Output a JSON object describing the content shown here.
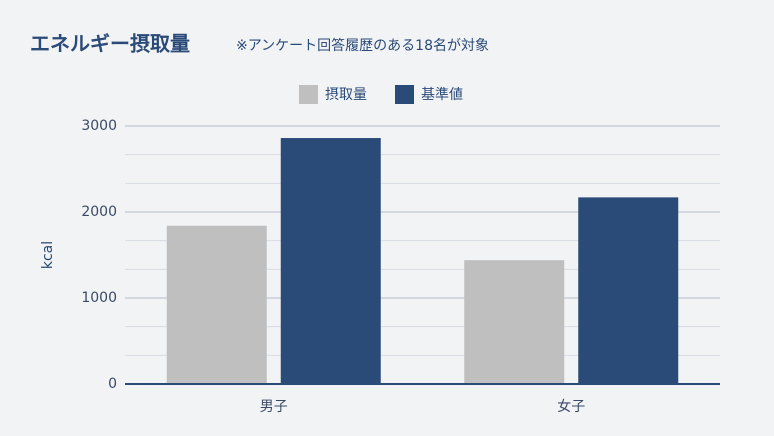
{
  "chart_data": {
    "type": "bar",
    "title": "エネルギー摂取量",
    "subtitle": "※アンケート回答履歴のある18名が対象",
    "y_label": "kcal",
    "categories": [
      "男子",
      "女子"
    ],
    "series": [
      {
        "name": "摂取量",
        "color": "#bfbfbf",
        "values": [
          1840,
          1440
        ]
      },
      {
        "name": "基準値",
        "color": "#2a4a78",
        "values": [
          2860,
          2170
        ]
      }
    ],
    "ylim": [
      0,
      3000
    ],
    "yticks": [
      0,
      1000,
      2000,
      3000
    ],
    "grid": true,
    "minor_grid_divisions": 3,
    "legend": "top"
  }
}
